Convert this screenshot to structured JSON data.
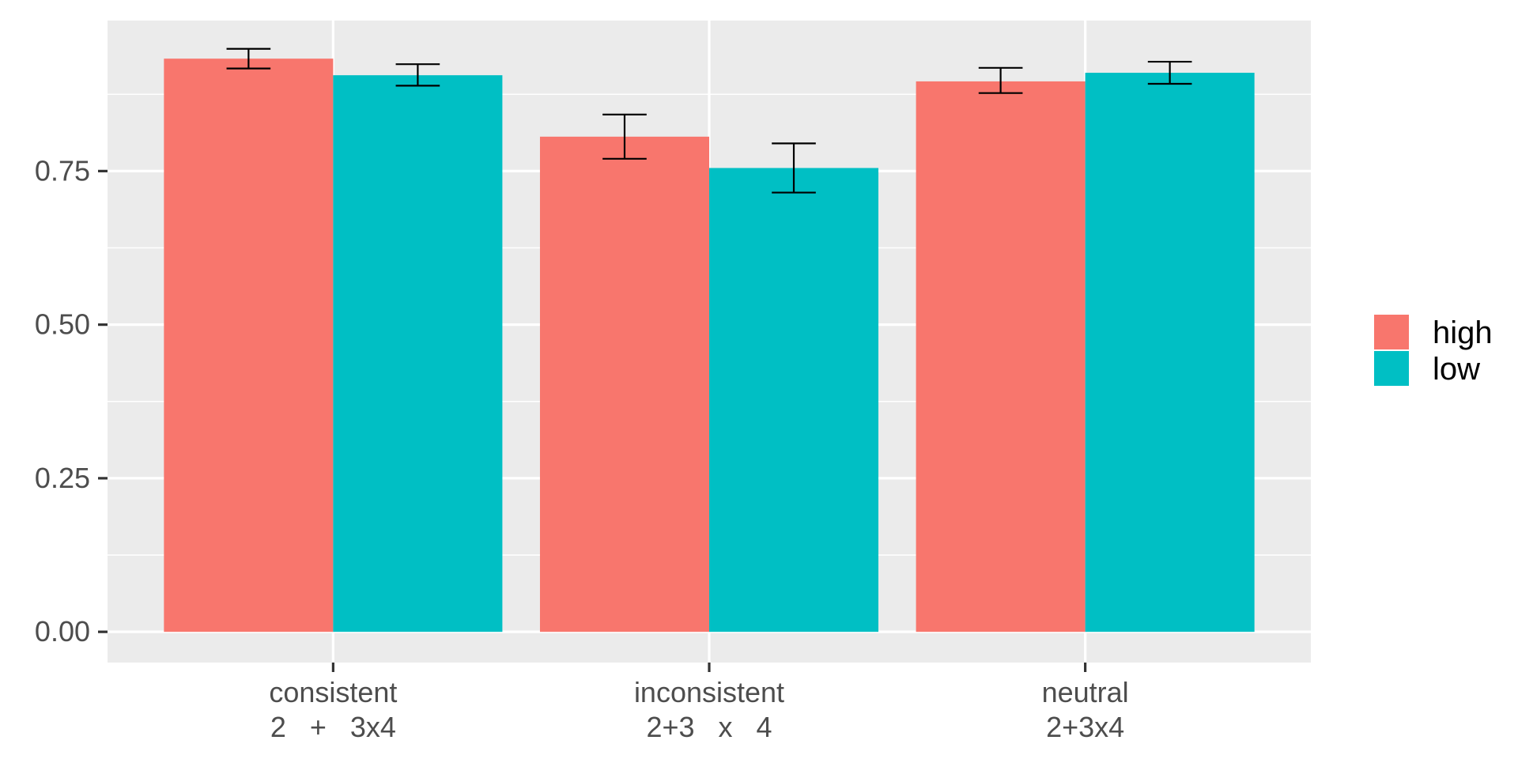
{
  "chart_data": {
    "type": "bar",
    "categories": [
      [
        "consistent",
        "2   +   3x4"
      ],
      [
        "inconsistent",
        "2+3   x   4"
      ],
      [
        "neutral",
        "2+3x4"
      ]
    ],
    "series": [
      {
        "name": "high",
        "values": [
          0.933,
          0.806,
          0.896
        ],
        "error": [
          [
            0.917,
            0.949
          ],
          [
            0.77,
            0.842
          ],
          [
            0.877,
            0.918
          ]
        ]
      },
      {
        "name": "low",
        "values": [
          0.906,
          0.755,
          0.91
        ],
        "error": [
          [
            0.889,
            0.924
          ],
          [
            0.715,
            0.795
          ],
          [
            0.892,
            0.928
          ]
        ]
      }
    ],
    "ylim": [
      -0.05,
      0.995
    ],
    "yticks": [
      0.0,
      0.25,
      0.5,
      0.75
    ],
    "ytick_labels": [
      "0.00",
      "0.25",
      "0.50",
      "0.75"
    ],
    "title": "",
    "xlabel": "",
    "ylabel": "",
    "grid": true,
    "legend": "right",
    "colors": {
      "high": "#F8766D",
      "low": "#00BFC4",
      "panel": "#EBEBEB",
      "grid": "#FFFFFF"
    }
  }
}
